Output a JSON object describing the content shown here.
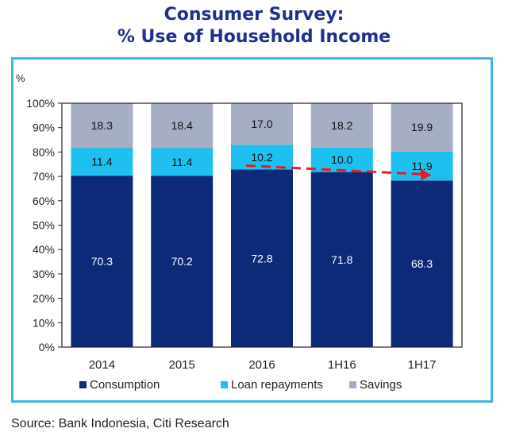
{
  "title_line1": "Consumer Survey:",
  "title_line2": "% Use of Household Income",
  "source": "Source: Bank Indonesia, Citi Research",
  "colors": {
    "frame": "#41b6e6",
    "title": "#1f2f8f",
    "trend_arrow": "#e31e24"
  },
  "chart_data": {
    "type": "bar",
    "stacked": true,
    "ylabel": "%",
    "ylim": [
      0,
      100
    ],
    "yticks": [
      "0%",
      "10%",
      "20%",
      "30%",
      "40%",
      "50%",
      "60%",
      "70%",
      "80%",
      "90%",
      "100%"
    ],
    "categories": [
      "2014",
      "2015",
      "2016",
      "1H16",
      "1H17"
    ],
    "series": [
      {
        "name": "Consumption",
        "color": "#0d2a78",
        "label_color": "#ffffff",
        "values": [
          70.3,
          70.2,
          72.8,
          71.8,
          68.3
        ]
      },
      {
        "name": "Loan repayments",
        "color": "#1ec0ef",
        "label_color": "#111111",
        "values": [
          11.4,
          11.4,
          10.2,
          10.0,
          11.9
        ]
      },
      {
        "name": "Savings",
        "color": "#a6aec4",
        "label_color": "#111111",
        "values": [
          18.3,
          18.4,
          17.0,
          18.2,
          19.9
        ]
      }
    ],
    "value_labels": [
      [
        "70.3",
        "70.2",
        "72.8",
        "71.8",
        "68.3"
      ],
      [
        "11.4",
        "11.4",
        "10.2",
        "10.0",
        "11.9"
      ],
      [
        "18.3",
        "18.4",
        "17.0",
        "18.2",
        "19.9"
      ]
    ],
    "legend_position": "bottom",
    "annotation": {
      "type": "dashed-arrow",
      "from_category": "2016",
      "to_category": "1H17",
      "series": "Consumption"
    }
  }
}
